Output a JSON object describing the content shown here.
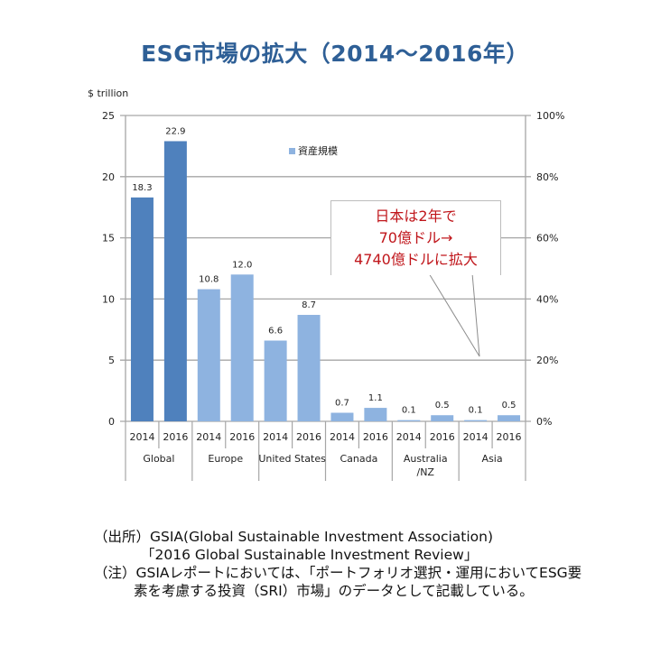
{
  "title": "ESG市場の拡大（2014～2016年）",
  "unit_label": "$ trillion",
  "legend": {
    "label": "資産規模",
    "color": "#8eb3e0"
  },
  "callout": {
    "lines": [
      "日本は2年で",
      "70億ドル→",
      "4740億ドルに拡大"
    ],
    "color": "#c0161b"
  },
  "notes": {
    "source_line1": "（出所）GSIA(Global Sustainable Investment Association)",
    "source_line2": "「2016 Global Sustainable Investment Review」",
    "note_line1": "（注）GSIAレポートにおいては、「ポートフォリオ選択・運用においてESG要",
    "note_line2": "素を考慮する投資（SRI）市場」のデータとして記載している。"
  },
  "colors": {
    "global_bar": "#4f81bd",
    "region_bar": "#8eb3e0",
    "gridline": "#a6a6a6",
    "title": "#2e5f96"
  },
  "chart_data": {
    "type": "bar",
    "title": "ESG市場の拡大（2014～2016年）",
    "xlabel": "",
    "ylabel": "$ trillion",
    "ylim": [
      0,
      25
    ],
    "yticks": [
      0,
      5,
      10,
      15,
      20,
      25
    ],
    "y2ticks": [
      "0%",
      "20%",
      "40%",
      "60%",
      "80%",
      "100%"
    ],
    "grid": true,
    "legend_position": "top-center",
    "groups": [
      "Global",
      "Europe",
      "United States",
      "Canada",
      "Australia /NZ",
      "Asia"
    ],
    "categories": [
      "2014",
      "2016",
      "2014",
      "2016",
      "2014",
      "2016",
      "2014",
      "2016",
      "2014",
      "2016",
      "2014",
      "2016"
    ],
    "series": [
      {
        "name": "資産規模",
        "values": [
          18.3,
          22.9,
          10.8,
          12.0,
          6.6,
          8.7,
          0.7,
          1.1,
          0.1,
          0.5,
          0.1,
          0.5
        ]
      }
    ],
    "data_labels": [
      "18.3",
      "22.9",
      "10.8",
      "12.0",
      "6.6",
      "8.7",
      "0.7",
      "1.1",
      "0.1",
      "0.5",
      "0.1",
      "0.5"
    ],
    "annotations": [
      "日本は2年で 70億ドル→ 4740億ドルに拡大"
    ]
  }
}
